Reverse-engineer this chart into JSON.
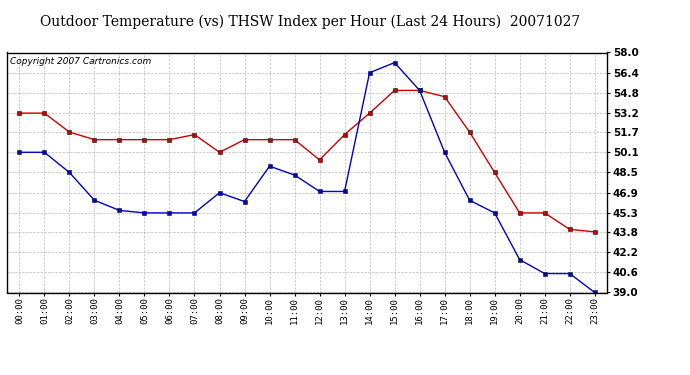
{
  "title": "Outdoor Temperature (vs) THSW Index per Hour (Last 24 Hours)  20071027",
  "copyright": "Copyright 2007 Cartronics.com",
  "hours": [
    "00:00",
    "01:00",
    "02:00",
    "03:00",
    "04:00",
    "05:00",
    "06:00",
    "07:00",
    "08:00",
    "09:00",
    "10:00",
    "11:00",
    "12:00",
    "13:00",
    "14:00",
    "15:00",
    "16:00",
    "17:00",
    "18:00",
    "19:00",
    "20:00",
    "21:00",
    "22:00",
    "23:00"
  ],
  "temp_red": [
    53.2,
    53.2,
    51.7,
    51.1,
    51.1,
    51.1,
    51.1,
    51.5,
    50.1,
    51.1,
    51.1,
    51.1,
    49.5,
    51.5,
    53.2,
    55.0,
    55.0,
    54.5,
    51.7,
    48.5,
    45.3,
    45.3,
    44.0,
    43.8
  ],
  "temp_blue": [
    50.1,
    50.1,
    48.5,
    46.3,
    45.5,
    45.3,
    45.3,
    45.3,
    46.9,
    46.2,
    49.0,
    48.3,
    47.0,
    47.0,
    56.4,
    57.2,
    55.0,
    50.1,
    46.3,
    45.3,
    41.6,
    40.5,
    40.5,
    39.0
  ],
  "ylim_min": 39.0,
  "ylim_max": 58.0,
  "yticks": [
    39.0,
    40.6,
    42.2,
    43.8,
    45.3,
    46.9,
    48.5,
    50.1,
    51.7,
    53.2,
    54.8,
    56.4,
    58.0
  ],
  "red_color": "#cc0000",
  "blue_color": "#0000cc",
  "bg_color": "#ffffff",
  "grid_color": "#aaaaaa",
  "title_fontsize": 10,
  "copyright_fontsize": 6.5
}
